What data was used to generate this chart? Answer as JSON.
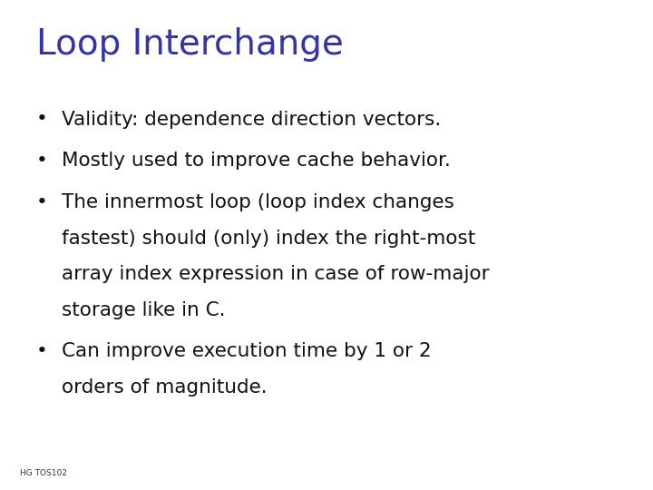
{
  "title": "Loop Interchange",
  "title_fontsize": 28,
  "title_color": "#3333aa",
  "background_color": "#ffffff",
  "bullet_points": [
    "Validity: dependence direction vectors.",
    "Mostly used to improve cache behavior.",
    "The innermost loop (loop index changes\nfastest) should (only) index the right-most\narray index expression in case of row-major\nstorage like in C.",
    "Can improve execution time by 1 or 2\norders of magnitude."
  ],
  "bullet_fontsize": 15.5,
  "bullet_color": "#111111",
  "footer_text": "HG TOS102",
  "footer_fontsize": 6.5,
  "footer_color": "#333333",
  "bullet_symbol": "•",
  "bullet_indent": 0.055,
  "text_indent": 0.095
}
